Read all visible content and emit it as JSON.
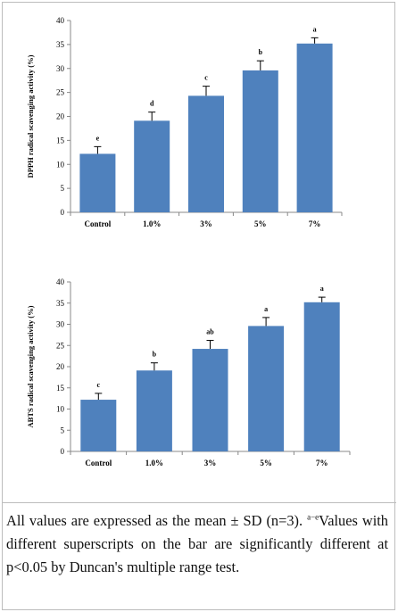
{
  "chart_data": [
    {
      "type": "bar",
      "categories": [
        "Control",
        "1.0%",
        "3%",
        "5%",
        "7%"
      ],
      "values": [
        12.2,
        19.1,
        24.3,
        29.6,
        35.2
      ],
      "errors": [
        1.5,
        1.8,
        2.0,
        2.0,
        1.2
      ],
      "superscripts": [
        "e",
        "d",
        "c",
        "b",
        "a"
      ],
      "ylabel": "DPPH radical scavenging activity (%)",
      "xlabel": "",
      "ylim": [
        0,
        40
      ],
      "yticks": [
        0,
        5,
        10,
        15,
        20,
        25,
        30,
        35,
        40
      ],
      "bar_color": "#4f81bd",
      "grid": false
    },
    {
      "type": "bar",
      "categories": [
        "Control",
        "1.0%",
        "3%",
        "5%",
        "7%"
      ],
      "values": [
        12.2,
        19.1,
        24.2,
        29.6,
        35.2
      ],
      "errors": [
        1.5,
        1.8,
        2.0,
        2.0,
        1.2
      ],
      "superscripts": [
        "c",
        "b",
        "ab",
        "a",
        "a"
      ],
      "ylabel": "ABTS radical scavenging activity (%)",
      "xlabel": "",
      "ylim": [
        0,
        40
      ],
      "yticks": [
        0,
        5,
        10,
        15,
        20,
        25,
        30,
        35,
        40
      ],
      "bar_color": "#4f81bd",
      "grid": false
    }
  ],
  "caption": {
    "before_sup": "All values are expressed as the mean ± SD (n=3). ",
    "sup": "a−e",
    "after_sup": "Values with different superscripts on the bar are significantly different at p<0.05 by Duncan's multiple range test."
  }
}
